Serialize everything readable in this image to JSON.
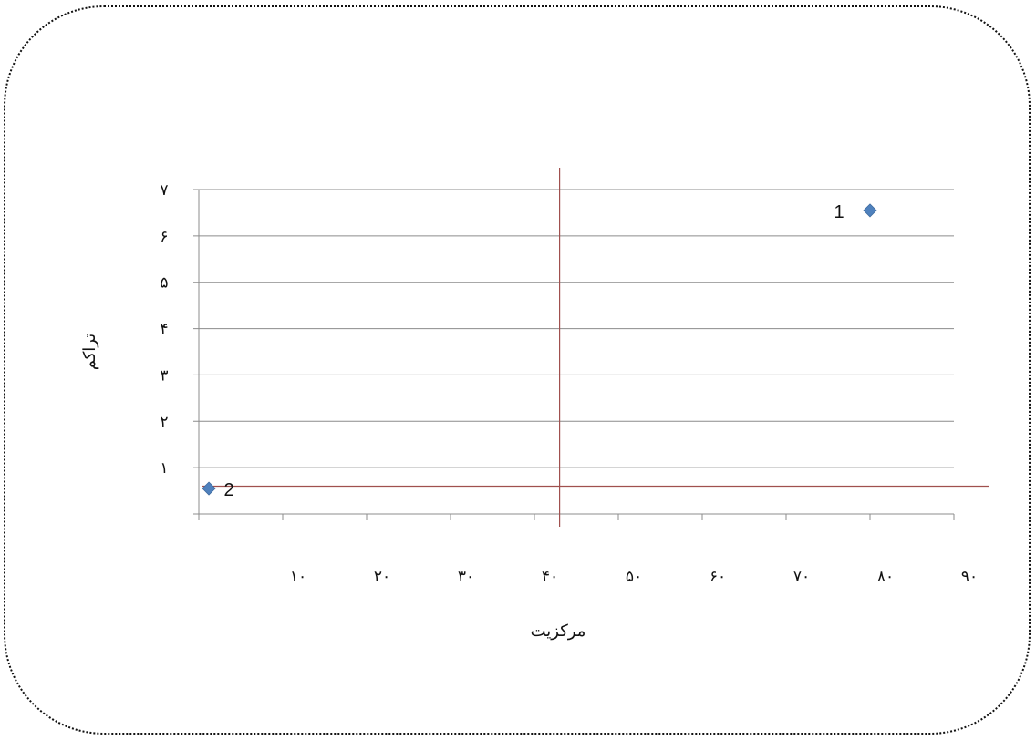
{
  "chart_data": {
    "type": "scatter",
    "title": "",
    "xlabel": "مرکزیت",
    "ylabel": "تراکم",
    "xlim": [
      0,
      90
    ],
    "ylim": [
      0,
      7
    ],
    "x_ticks": [
      10,
      20,
      30,
      40,
      50,
      60,
      70,
      80,
      90
    ],
    "x_tick_labels": [
      "۱۰",
      "۲۰",
      "۳۰",
      "۴۰",
      "۵۰",
      "۶۰",
      "۷۰",
      "۸۰",
      "۹۰"
    ],
    "y_ticks": [
      1,
      2,
      3,
      4,
      5,
      6,
      7
    ],
    "y_tick_labels": [
      "۱",
      "۲",
      "۳",
      "۴",
      "۵",
      "۶",
      "۷"
    ],
    "grid": "horizontal",
    "marker": "diamond",
    "marker_color": "#4F81BD",
    "reference_line_color": "#A0504E",
    "reference_lines": {
      "vertical_x": 43,
      "horizontal_y": 0.6
    },
    "points": [
      {
        "label": "1",
        "x": 80,
        "y": 6.55
      },
      {
        "label": "2",
        "x": 1.2,
        "y": 0.55
      }
    ]
  }
}
